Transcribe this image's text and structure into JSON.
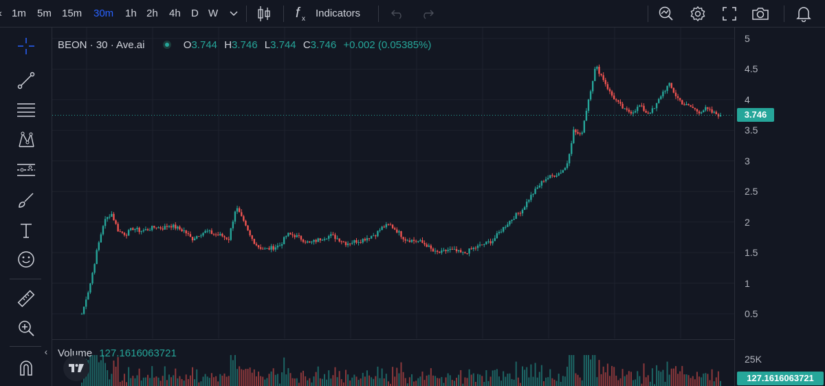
{
  "toolbar": {
    "intervals": [
      "1m",
      "5m",
      "15m",
      "30m",
      "1h",
      "2h",
      "4h",
      "D",
      "W"
    ],
    "active_interval": "30m",
    "indicators_label": "Indicators"
  },
  "legend": {
    "symbol": "BEON · 30 · Ave.ai",
    "open_label": "O",
    "open": "3.744",
    "high_label": "H",
    "high": "3.746",
    "low_label": "L",
    "low": "3.744",
    "close_label": "C",
    "close": "3.746",
    "change": "+0.002 (0.05385%)"
  },
  "volume": {
    "label": "Volume",
    "value": "127.1616063721",
    "axis_label": "25K",
    "last_tag": "127.1616063721"
  },
  "price_axis": {
    "ticks": [
      "5",
      "4.5",
      "4",
      "3.5",
      "3",
      "2.5",
      "2",
      "1.5",
      "1",
      "0.5"
    ],
    "last_price": "3.746"
  },
  "colors": {
    "up": "#26a69a",
    "down": "#ef5350",
    "background": "#131722",
    "accent": "#2962ff"
  },
  "chart_data": {
    "type": "line",
    "title": "BEON · 30 · Ave.ai",
    "xlabel": "",
    "ylabel": "",
    "ylim": [
      0.2,
      5.2
    ],
    "series": [
      {
        "values": [
          0.5,
          0.9,
          1.5,
          2.0,
          2.15,
          1.85,
          1.8,
          1.9,
          1.85,
          1.88,
          1.92,
          1.9,
          1.95,
          1.9,
          1.85,
          1.72,
          1.8,
          1.85,
          1.8,
          1.78,
          1.72,
          2.25,
          2.0,
          1.75,
          1.6,
          1.55,
          1.58,
          1.62,
          1.8,
          1.78,
          1.72,
          1.65,
          1.7,
          1.75,
          1.78,
          1.72,
          1.65,
          1.68,
          1.7,
          1.75,
          1.8,
          1.92,
          1.95,
          1.85,
          1.72,
          1.7,
          1.68,
          1.62,
          1.5,
          1.5,
          1.55,
          1.52,
          1.48,
          1.55,
          1.6,
          1.65,
          1.7,
          1.85,
          1.98,
          2.1,
          2.2,
          2.4,
          2.55,
          2.7,
          2.75,
          2.8,
          2.9,
          3.5,
          3.4,
          4.0,
          4.55,
          4.35,
          4.1,
          3.95,
          3.82,
          3.8,
          3.9,
          3.78,
          3.85,
          4.1,
          4.25,
          4.05,
          3.92,
          3.88,
          3.8,
          3.85,
          3.78,
          3.746
        ]
      }
    ],
    "grid": true,
    "volume_axis": "25K"
  }
}
